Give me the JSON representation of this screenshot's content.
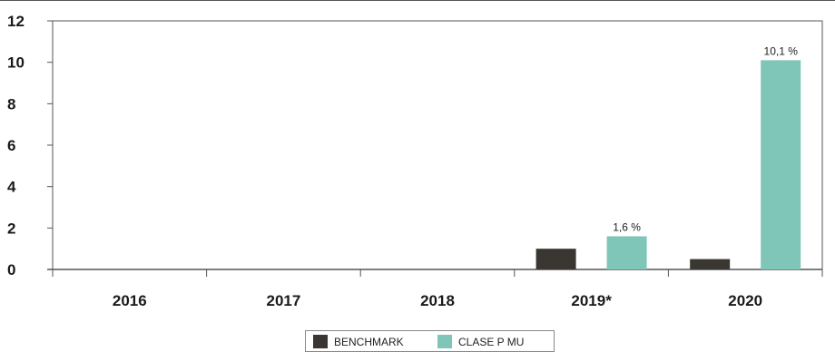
{
  "chart_data": {
    "type": "bar",
    "title": "",
    "xlabel": "",
    "ylabel": "",
    "categories": [
      "2016",
      "2017",
      "2018",
      "2019*",
      "2020"
    ],
    "series": [
      {
        "name": "BENCHMARK",
        "color": "#3a3632",
        "values": [
          null,
          null,
          null,
          1.0,
          0.5
        ],
        "labels": [
          "",
          "",
          "",
          "",
          ""
        ]
      },
      {
        "name": "CLASE P MU",
        "color": "#7fc6b9",
        "values": [
          null,
          null,
          null,
          1.6,
          10.1
        ],
        "labels": [
          "",
          "",
          "",
          "1,6 %",
          "10,1 %"
        ]
      }
    ],
    "ylim": [
      0,
      12
    ],
    "yticks": [
      "0",
      "2",
      "4",
      "6",
      "8",
      "10",
      "12"
    ],
    "grid": false,
    "legend": "bottom-center"
  }
}
